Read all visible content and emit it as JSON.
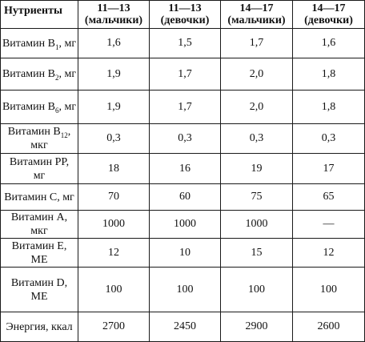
{
  "table": {
    "headers": [
      {
        "line1": "Нутриенты",
        "line2": ""
      },
      {
        "line1": "11—13",
        "line2": "(мальчики)"
      },
      {
        "line1": "11—13",
        "line2": "(девочки)"
      },
      {
        "line1": "14—17",
        "line2": "(мальчики)"
      },
      {
        "line1": "14—17",
        "line2": "(девочки)"
      }
    ],
    "rows": [
      {
        "name": "Витамин B",
        "sub": "1",
        "unit": ", мг",
        "values": [
          "1,6",
          "1,5",
          "1,7",
          "1,6"
        ]
      },
      {
        "name": "Витамин B",
        "sub": "2",
        "unit": ", мг",
        "values": [
          "1,9",
          "1,7",
          "2,0",
          "1,8"
        ]
      },
      {
        "name": "Витамин B",
        "sub": "6",
        "unit": ", мг",
        "values": [
          "1,9",
          "1,7",
          "2,0",
          "1,8"
        ]
      },
      {
        "name": "Витамин B",
        "sub": "12",
        "unit": ", мкг",
        "values": [
          "0,3",
          "0,3",
          "0,3",
          "0,3"
        ]
      },
      {
        "name": "Витамин PP,",
        "sub": "",
        "unit": "мг",
        "values": [
          "18",
          "16",
          "19",
          "17"
        ]
      },
      {
        "name": "Витамин C, мг",
        "sub": "",
        "unit": "",
        "values": [
          "70",
          "60",
          "75",
          "65"
        ]
      },
      {
        "name": "Витамин A,",
        "sub": "",
        "unit": "мкг",
        "values": [
          "1000",
          "1000",
          "1000",
          "—"
        ]
      },
      {
        "name": "Витамин E,",
        "sub": "",
        "unit": "МЕ",
        "values": [
          "12",
          "10",
          "15",
          "12"
        ]
      },
      {
        "name": "Витамин D,",
        "sub": "",
        "unit": "МЕ",
        "values": [
          "100",
          "100",
          "100",
          "100"
        ]
      },
      {
        "name": "Энергия, ккал",
        "sub": "",
        "unit": "",
        "values": [
          "2700",
          "2450",
          "2900",
          "2600"
        ]
      }
    ]
  }
}
